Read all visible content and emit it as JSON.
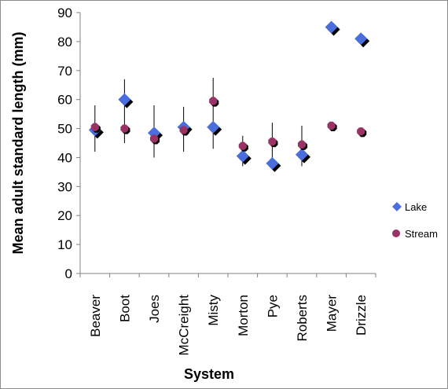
{
  "chart_data": {
    "type": "scatter",
    "categories": [
      "Beaver",
      "Boot",
      "Joes",
      "McCreight",
      "Misty",
      "Morton",
      "Pye",
      "Roberts",
      "Mayer",
      "Drizzle"
    ],
    "xlabel": "System",
    "ylabel": "Mean adult standard length (mm)",
    "ylim": [
      0,
      90
    ],
    "yticks": [
      0,
      10,
      20,
      30,
      40,
      50,
      60,
      70,
      80,
      90
    ],
    "grid": false,
    "legend_position": "right",
    "series": [
      {
        "name": "Lake",
        "marker": "diamond",
        "color": "#4a6fdc",
        "values": [
          49.5,
          60,
          48.5,
          50.5,
          50.5,
          40.5,
          38,
          41,
          85,
          81
        ],
        "error_low": [
          42,
          45,
          40,
          42,
          43,
          37,
          37.5,
          37,
          null,
          null
        ],
        "error_high": [
          58,
          67,
          58,
          57.5,
          67.5,
          47.5,
          52,
          51,
          null,
          null
        ]
      },
      {
        "name": "Stream",
        "marker": "circle",
        "color": "#993366",
        "values": [
          50.5,
          50,
          46.5,
          49.5,
          59.5,
          44,
          45.5,
          44.5,
          51,
          49
        ],
        "error_low": [
          null,
          null,
          null,
          null,
          null,
          null,
          null,
          null,
          null,
          null
        ],
        "error_high": [
          null,
          null,
          null,
          null,
          null,
          null,
          null,
          null,
          null,
          null
        ]
      }
    ]
  }
}
